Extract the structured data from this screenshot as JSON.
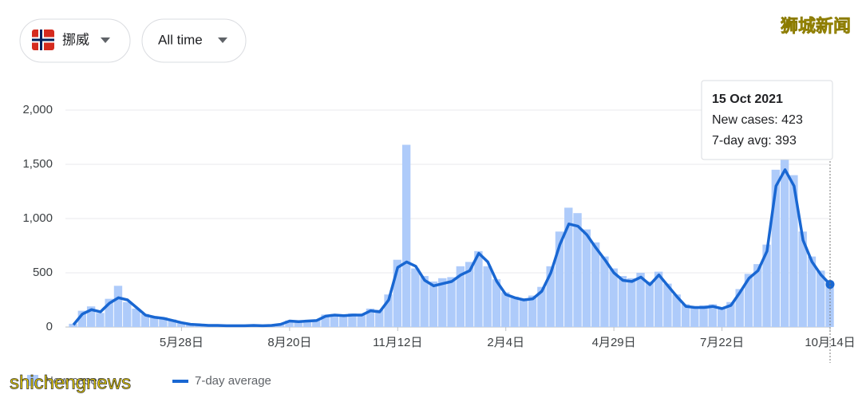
{
  "controls": {
    "country": "挪威",
    "range": "All time"
  },
  "watermark": {
    "top": "狮城新闻",
    "bottom": "shichengnews"
  },
  "tooltip": {
    "title": "15 Oct 2021",
    "lines": [
      "New cases: 423",
      "7-day avg: 393"
    ]
  },
  "chart_data": {
    "type": "bar-line",
    "categories": [
      null,
      null,
      null,
      null,
      null,
      null,
      null,
      null,
      null,
      null,
      null,
      null,
      "5月28日",
      null,
      null,
      null,
      null,
      null,
      null,
      null,
      null,
      null,
      null,
      null,
      "8月20日",
      null,
      null,
      null,
      null,
      null,
      null,
      null,
      null,
      null,
      null,
      null,
      "11月12日",
      null,
      null,
      null,
      null,
      null,
      null,
      null,
      null,
      null,
      null,
      null,
      "2月4日",
      null,
      null,
      null,
      null,
      null,
      null,
      null,
      null,
      null,
      null,
      null,
      "4月29日",
      null,
      null,
      null,
      null,
      null,
      null,
      null,
      null,
      null,
      null,
      null,
      "7月22日",
      null,
      null,
      null,
      null,
      null,
      null,
      null,
      null,
      null,
      null,
      null,
      "10月14日"
    ],
    "series": [
      {
        "name": "New cases",
        "color": "#aecbfa",
        "values": [
          30,
          150,
          190,
          130,
          260,
          380,
          230,
          170,
          120,
          100,
          90,
          70,
          45,
          30,
          20,
          18,
          15,
          14,
          12,
          13,
          18,
          14,
          17,
          30,
          60,
          55,
          58,
          70,
          115,
          120,
          110,
          125,
          120,
          170,
          160,
          300,
          620,
          1680,
          540,
          470,
          420,
          450,
          460,
          560,
          600,
          700,
          560,
          440,
          320,
          280,
          260,
          290,
          370,
          560,
          880,
          1100,
          1050,
          900,
          780,
          650,
          540,
          470,
          450,
          500,
          420,
          510,
          400,
          300,
          210,
          190,
          200,
          210,
          180,
          230,
          350,
          490,
          580,
          760,
          1450,
          1650,
          1400,
          880,
          650,
          520,
          423
        ]
      },
      {
        "name": "7-day average",
        "color": "#1967d2",
        "values": [
          20,
          120,
          160,
          140,
          220,
          270,
          250,
          180,
          110,
          90,
          80,
          60,
          40,
          25,
          20,
          15,
          15,
          12,
          12,
          12,
          15,
          12,
          15,
          25,
          55,
          50,
          55,
          60,
          100,
          110,
          105,
          110,
          110,
          150,
          140,
          250,
          550,
          600,
          560,
          430,
          380,
          400,
          420,
          480,
          520,
          680,
          600,
          420,
          300,
          270,
          250,
          260,
          330,
          500,
          760,
          950,
          930,
          850,
          730,
          620,
          500,
          430,
          420,
          460,
          390,
          480,
          380,
          280,
          190,
          180,
          180,
          190,
          170,
          200,
          320,
          450,
          520,
          700,
          1300,
          1450,
          1300,
          800,
          600,
          480,
          393
        ]
      }
    ],
    "ylim": [
      0,
      2000
    ],
    "yticks": [
      0,
      500,
      {
        "value": 1000,
        "label": "1,000"
      },
      {
        "value": 1500,
        "label": "1,500"
      },
      {
        "value": 2000,
        "label": "2,000"
      }
    ],
    "grid": true
  }
}
